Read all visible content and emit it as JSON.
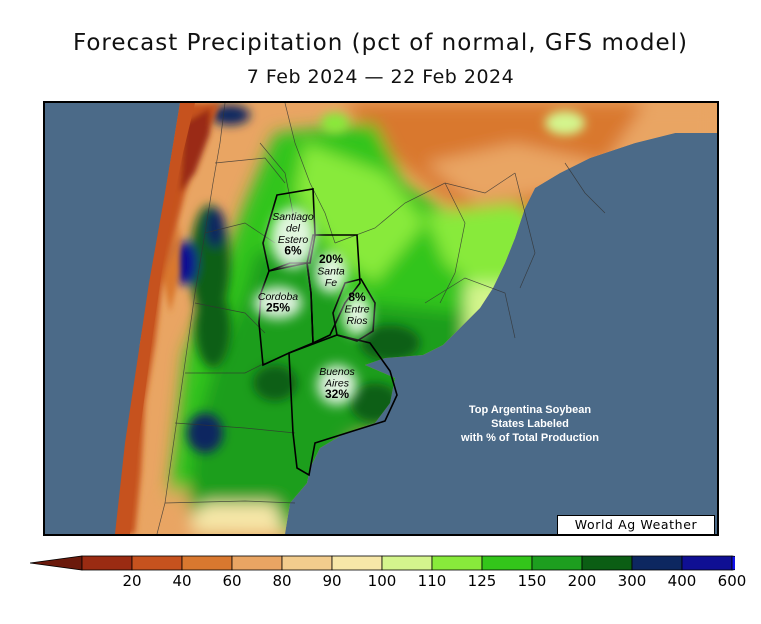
{
  "title": "Forecast Precipitation (pct of normal, GFS model)",
  "date_range": "7 Feb 2024 — 22 Feb 2024",
  "legend": {
    "ticks": [
      "20",
      "40",
      "60",
      "80",
      "90",
      "100",
      "110",
      "125",
      "150",
      "200",
      "300",
      "400",
      "600"
    ],
    "colors": [
      "#9a2b12",
      "#c6521e",
      "#d9782f",
      "#e9a563",
      "#f2cc8d",
      "#f7e7a8",
      "#d4f58d",
      "#88ea3b",
      "#33c51a",
      "#1d9e1f",
      "#0b5e14",
      "#0d2760",
      "#0f0f93"
    ],
    "low_arrow_color": "#6b1a0c",
    "high_arrow_color": "#1111ee"
  },
  "provinces": [
    {
      "name_lines": [
        "Santiago",
        "del",
        "Estero"
      ],
      "pct": "6%"
    },
    {
      "name_lines": [
        "Santa",
        "Fe"
      ],
      "pct": "20%"
    },
    {
      "name_lines": [
        "Cordoba"
      ],
      "pct": "25%"
    },
    {
      "name_lines": [
        "Entre",
        "Rios"
      ],
      "pct": "8%"
    },
    {
      "name_lines": [
        "Buenos",
        "Aires"
      ],
      "pct": "32%"
    }
  ],
  "note_lines": [
    "Top Argentina Soybean",
    "States Labeled",
    "with % of Total Production"
  ],
  "credit": "World Ag Weather",
  "colors": {
    "ocean": "#4b6a88"
  }
}
